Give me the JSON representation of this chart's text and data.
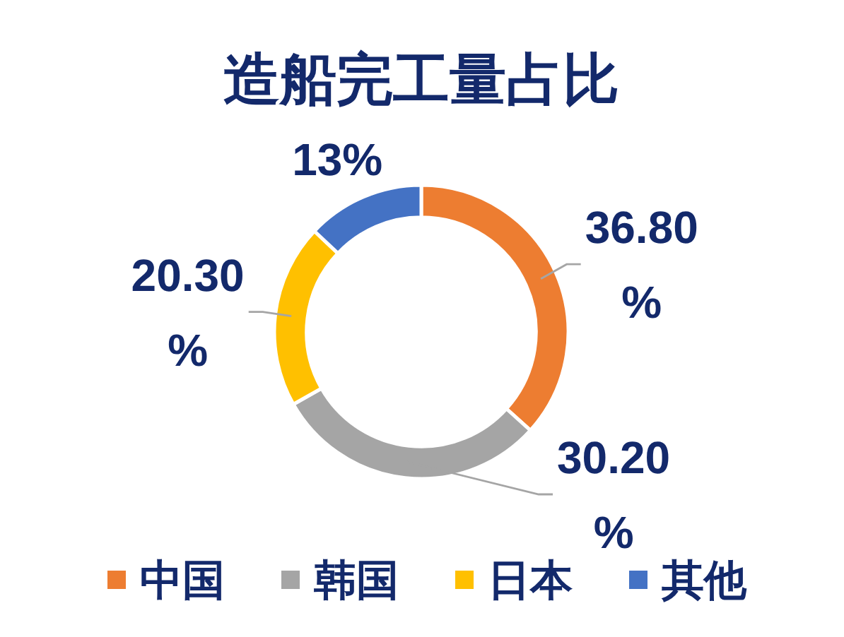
{
  "chart_data": {
    "type": "donut",
    "title": "造船完工量占比",
    "categories": [
      "中国",
      "韩国",
      "日本",
      "其他"
    ],
    "values": [
      36.8,
      30.2,
      20.3,
      13
    ],
    "colors": [
      "#ed7d31",
      "#a5a5a5",
      "#ffc000",
      "#4472c4"
    ],
    "value_labels": [
      "36.80%",
      "30.20%",
      "20.30%",
      "13%"
    ],
    "legend": "bottom"
  }
}
